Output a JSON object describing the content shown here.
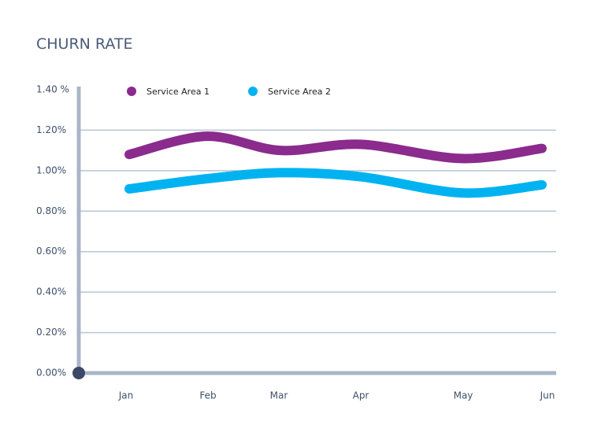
{
  "chart_data": {
    "type": "line",
    "title": "CHURN RATE",
    "categories": [
      "Jan",
      "Feb",
      "Mar",
      "Apr",
      "May",
      "Jun"
    ],
    "series": [
      {
        "name": "Service Area 1",
        "color": "#8a2b8d",
        "values": [
          1.08,
          1.17,
          1.1,
          1.13,
          1.06,
          1.11
        ]
      },
      {
        "name": "Service Area 2",
        "color": "#00b3f0",
        "values": [
          0.91,
          0.96,
          0.99,
          0.97,
          0.89,
          0.93
        ]
      }
    ],
    "ylim": [
      0,
      1.4
    ],
    "yticks": [
      {
        "value": 0,
        "label": "0.00%"
      },
      {
        "value": 0.2,
        "label": "0.20%"
      },
      {
        "value": 0.4,
        "label": "0.40%"
      },
      {
        "value": 0.6,
        "label": "0.60%"
      },
      {
        "value": 0.8,
        "label": "0.80%"
      },
      {
        "value": 1.0,
        "label": "1.00%"
      },
      {
        "value": 1.2,
        "label": "1.20%"
      },
      {
        "value": 1.4,
        "label": "1.40 %"
      }
    ],
    "grid": true
  }
}
